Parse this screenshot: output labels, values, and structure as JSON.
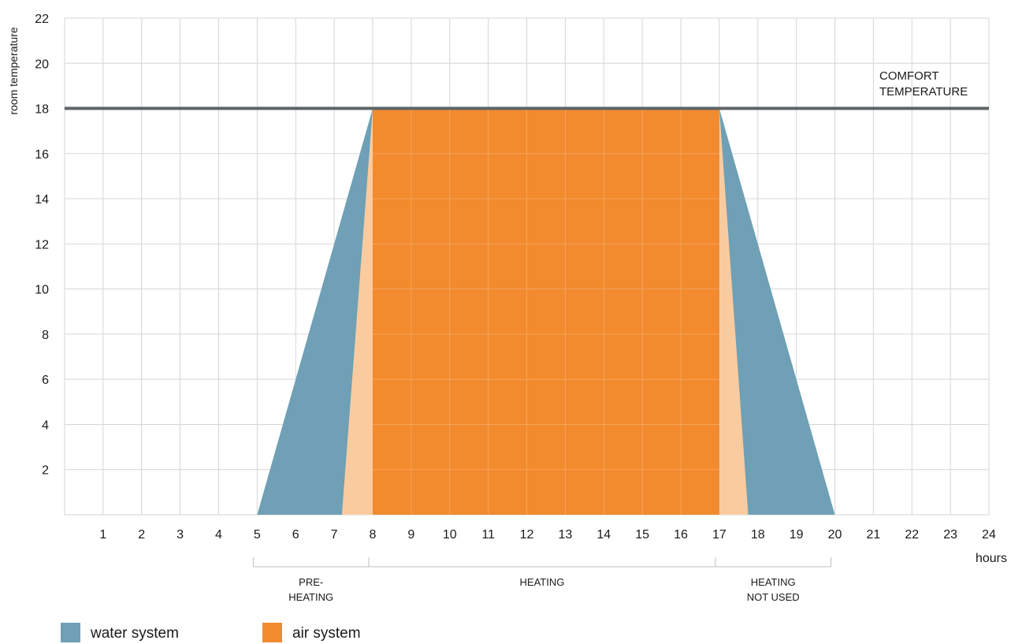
{
  "chart_data": {
    "type": "area",
    "title": "",
    "ylabel": "room temperature",
    "xlabel": "hours",
    "xlim": [
      0,
      24
    ],
    "ylim": [
      0,
      22
    ],
    "x_ticks": [
      1,
      2,
      3,
      4,
      5,
      6,
      7,
      8,
      9,
      10,
      11,
      12,
      13,
      14,
      15,
      16,
      17,
      18,
      19,
      20,
      21,
      22,
      23,
      24
    ],
    "y_ticks": [
      2,
      4,
      6,
      8,
      10,
      12,
      14,
      16,
      18,
      20,
      22
    ],
    "grid": true,
    "series": [
      {
        "name": "water system",
        "color": "#6fa0b5",
        "x": [
          5,
          8,
          17,
          20
        ],
        "y": [
          0,
          18,
          18,
          0
        ]
      },
      {
        "name": "air system",
        "color": "#f28a2e",
        "x": [
          8,
          8,
          17,
          17
        ],
        "y": [
          0,
          18,
          18,
          0
        ]
      }
    ],
    "ramps": {
      "color": "#fbcba0",
      "items": [
        {
          "x": [
            7.2,
            8,
            8
          ],
          "y": [
            0,
            18,
            0
          ]
        },
        {
          "x": [
            17,
            17,
            17.75
          ],
          "y": [
            0,
            18,
            0
          ]
        }
      ]
    },
    "reference_line": {
      "y": 18,
      "color": "#5f6468",
      "label_lines": [
        "COMFORT",
        "TEMPERATURE"
      ]
    },
    "phases": [
      {
        "start": 5,
        "end": 8,
        "lines": [
          "PRE-",
          "HEATING"
        ]
      },
      {
        "start": 8,
        "end": 17,
        "lines": [
          "HEATING"
        ]
      },
      {
        "start": 17,
        "end": 20,
        "lines": [
          "HEATING",
          "NOT USED"
        ]
      }
    ],
    "legend": {
      "placement": "bottom-left",
      "items": [
        {
          "label": "water system",
          "color": "#6fa0b5"
        },
        {
          "label": "air system",
          "color": "#f28a2e"
        }
      ]
    }
  }
}
